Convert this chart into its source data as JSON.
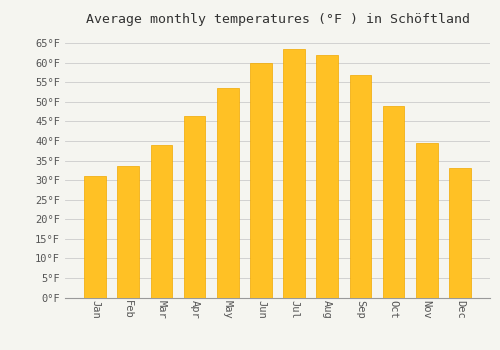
{
  "title": "Average monthly temperatures (°F ) in Schöftland",
  "months": [
    "Jan",
    "Feb",
    "Mar",
    "Apr",
    "May",
    "Jun",
    "Jul",
    "Aug",
    "Sep",
    "Oct",
    "Nov",
    "Dec"
  ],
  "values": [
    31,
    33.5,
    39,
    46.5,
    53.5,
    60,
    63.5,
    62,
    57,
    49,
    39.5,
    33
  ],
  "bar_color": "#FFC125",
  "bar_edge_color": "#F0A800",
  "background_color": "#F5F5F0",
  "grid_color": "#CCCCCC",
  "ylim": [
    0,
    68
  ],
  "yticks": [
    0,
    5,
    10,
    15,
    20,
    25,
    30,
    35,
    40,
    45,
    50,
    55,
    60,
    65
  ],
  "ytick_labels": [
    "0°F",
    "5°F",
    "10°F",
    "15°F",
    "20°F",
    "25°F",
    "30°F",
    "35°F",
    "40°F",
    "45°F",
    "50°F",
    "55°F",
    "60°F",
    "65°F"
  ],
  "title_fontsize": 9.5,
  "tick_fontsize": 7.5,
  "font_family": "monospace",
  "xlabel_rotation": 270,
  "bar_width": 0.65
}
